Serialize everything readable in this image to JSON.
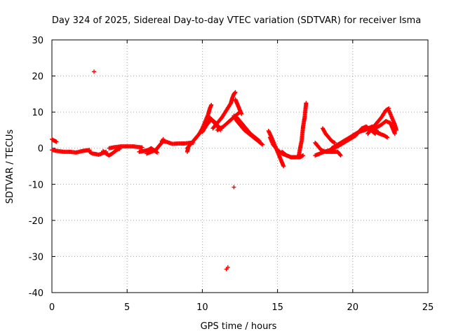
{
  "chart_data": {
    "type": "scatter",
    "title": "Day 324 of 2025, Sidereal Day-to-day VTEC variation (SDTVAR) for receiver Isma",
    "xlabel": "GPS time / hours",
    "ylabel": "SDTVAR / TECUs",
    "xlim": [
      0,
      25
    ],
    "ylim": [
      -40,
      30
    ],
    "xticks": [
      "0",
      "5",
      "10",
      "15",
      "20",
      "25"
    ],
    "yticks": [
      "30",
      "20",
      "10",
      "0",
      "-10",
      "-20",
      "-30",
      "-40"
    ],
    "grid": true,
    "marker": "+",
    "series_color": "#ff0000",
    "tracks": [
      [
        [
          0.0,
          2.5
        ],
        [
          0.1,
          2.2
        ],
        [
          0.2,
          2.0
        ],
        [
          0.3,
          1.8
        ]
      ],
      [
        [
          0.0,
          -0.5
        ],
        [
          0.4,
          -0.8
        ],
        [
          0.8,
          -1.0
        ],
        [
          1.2,
          -1.0
        ],
        [
          1.6,
          -1.2
        ],
        [
          2.0,
          -0.8
        ],
        [
          2.3,
          -0.6
        ],
        [
          2.5,
          -0.5
        ]
      ],
      [
        [
          2.5,
          -1.0
        ],
        [
          2.7,
          -1.5
        ],
        [
          2.9,
          -1.6
        ],
        [
          3.1,
          -1.8
        ],
        [
          3.3,
          -1.5
        ],
        [
          3.6,
          -1.0
        ]
      ],
      [
        [
          3.4,
          -0.8
        ],
        [
          3.6,
          -1.5
        ],
        [
          3.8,
          -2.0
        ],
        [
          4.0,
          -1.5
        ],
        [
          4.3,
          -0.5
        ],
        [
          4.5,
          -0.2
        ]
      ],
      [
        [
          3.8,
          0.0
        ],
        [
          4.2,
          0.3
        ],
        [
          4.6,
          0.5
        ],
        [
          5.0,
          0.5
        ],
        [
          5.4,
          0.5
        ],
        [
          5.8,
          0.3
        ],
        [
          6.0,
          0.2
        ]
      ],
      [
        [
          5.8,
          -1.0
        ],
        [
          6.1,
          -0.8
        ],
        [
          6.4,
          -0.5
        ],
        [
          6.6,
          0.0
        ],
        [
          6.8,
          -0.6
        ],
        [
          7.0,
          -1.2
        ]
      ],
      [
        [
          6.3,
          -1.5
        ],
        [
          6.6,
          -1.0
        ],
        [
          6.9,
          -0.5
        ],
        [
          7.1,
          0.5
        ],
        [
          7.3,
          1.5
        ],
        [
          7.4,
          2.5
        ]
      ],
      [
        [
          7.3,
          2.0
        ],
        [
          7.6,
          1.8
        ],
        [
          7.8,
          1.5
        ],
        [
          8.0,
          1.2
        ],
        [
          8.4,
          1.3
        ],
        [
          8.8,
          1.3
        ],
        [
          9.2,
          1.5
        ],
        [
          9.4,
          1.5
        ]
      ],
      [
        [
          9.0,
          0.0
        ],
        [
          9.2,
          1.0
        ],
        [
          9.4,
          2.0
        ],
        [
          9.6,
          3.0
        ],
        [
          9.8,
          4.0
        ]
      ],
      [
        [
          9.0,
          -1.0
        ],
        [
          9.05,
          0.0
        ]
      ],
      [
        [
          9.8,
          4.0
        ],
        [
          10.0,
          5.5
        ],
        [
          10.2,
          7.5
        ],
        [
          10.4,
          9.5
        ],
        [
          10.5,
          11.0
        ],
        [
          10.6,
          12.0
        ]
      ],
      [
        [
          10.0,
          4.5
        ],
        [
          10.3,
          6.5
        ],
        [
          10.6,
          8.0
        ],
        [
          10.9,
          7.0
        ],
        [
          11.2,
          5.0
        ]
      ],
      [
        [
          10.2,
          7.0
        ],
        [
          10.5,
          8.5
        ],
        [
          10.7,
          7.5
        ],
        [
          11.0,
          6.0
        ],
        [
          11.3,
          5.5
        ]
      ],
      [
        [
          10.7,
          5.5
        ],
        [
          11.0,
          7.0
        ],
        [
          11.3,
          8.5
        ],
        [
          11.6,
          10.5
        ],
        [
          11.9,
          12.5
        ],
        [
          12.0,
          14.0
        ],
        [
          12.1,
          15.0
        ],
        [
          12.2,
          15.5
        ]
      ],
      [
        [
          11.0,
          5.0
        ],
        [
          11.4,
          6.0
        ],
        [
          11.8,
          7.5
        ],
        [
          12.2,
          9.0
        ],
        [
          12.5,
          10.0
        ]
      ],
      [
        [
          12.2,
          13.5
        ],
        [
          12.3,
          12.5
        ],
        [
          12.4,
          11.5
        ],
        [
          12.5,
          10.5
        ],
        [
          12.6,
          9.5
        ]
      ],
      [
        [
          12.1,
          9.0
        ],
        [
          12.3,
          7.5
        ],
        [
          12.5,
          6.5
        ],
        [
          12.8,
          5.0
        ],
        [
          13.1,
          4.0
        ],
        [
          13.4,
          3.0
        ],
        [
          13.7,
          2.0
        ],
        [
          14.0,
          1.0
        ]
      ],
      [
        [
          12.3,
          8.5
        ],
        [
          12.6,
          7.0
        ],
        [
          12.9,
          5.5
        ],
        [
          13.2,
          4.0
        ],
        [
          13.5,
          3.0
        ],
        [
          13.8,
          2.0
        ]
      ],
      [
        [
          14.4,
          4.8
        ],
        [
          14.6,
          3.0
        ],
        [
          14.8,
          1.0
        ],
        [
          15.0,
          -1.0
        ],
        [
          15.2,
          -3.0
        ],
        [
          15.3,
          -4.0
        ],
        [
          15.4,
          -5.0
        ]
      ],
      [
        [
          14.5,
          3.0
        ],
        [
          14.7,
          1.0
        ],
        [
          15.0,
          -0.5
        ],
        [
          15.3,
          -1.5
        ],
        [
          15.6,
          -2.0
        ],
        [
          15.9,
          -2.5
        ],
        [
          16.2,
          -2.5
        ]
      ],
      [
        [
          15.3,
          -1.0
        ],
        [
          15.6,
          -2.0
        ],
        [
          15.9,
          -2.5
        ],
        [
          16.2,
          -2.5
        ],
        [
          16.5,
          -2.5
        ],
        [
          16.7,
          -2.0
        ]
      ],
      [
        [
          16.4,
          -2.5
        ],
        [
          16.5,
          0.0
        ],
        [
          16.6,
          2.0
        ],
        [
          16.65,
          4.0
        ],
        [
          16.7,
          6.0
        ],
        [
          16.8,
          8.5
        ],
        [
          16.85,
          10.5
        ],
        [
          16.9,
          12.5
        ]
      ],
      [
        [
          17.5,
          1.5
        ],
        [
          17.7,
          0.5
        ],
        [
          17.9,
          -0.5
        ],
        [
          18.2,
          -1.0
        ],
        [
          18.5,
          -1.0
        ],
        [
          18.8,
          -1.0
        ],
        [
          19.0,
          -1.0
        ],
        [
          19.2,
          -2.0
        ]
      ],
      [
        [
          17.5,
          -2.0
        ],
        [
          17.8,
          -1.5
        ],
        [
          18.1,
          -1.0
        ],
        [
          18.5,
          -0.5
        ],
        [
          19.0,
          0.5
        ],
        [
          19.4,
          1.5
        ],
        [
          19.8,
          2.5
        ],
        [
          20.2,
          3.5
        ]
      ],
      [
        [
          18.0,
          5.5
        ],
        [
          18.2,
          4.0
        ],
        [
          18.4,
          3.0
        ],
        [
          18.6,
          2.0
        ],
        [
          18.8,
          1.5
        ]
      ],
      [
        [
          18.6,
          0.0
        ],
        [
          19.0,
          1.0
        ],
        [
          19.4,
          2.0
        ],
        [
          19.8,
          3.0
        ],
        [
          20.2,
          4.0
        ],
        [
          20.6,
          5.0
        ],
        [
          21.0,
          5.5
        ],
        [
          21.3,
          6.0
        ]
      ],
      [
        [
          20.0,
          3.5
        ],
        [
          20.4,
          4.5
        ],
        [
          20.8,
          5.0
        ],
        [
          21.1,
          5.5
        ],
        [
          21.4,
          5.0
        ],
        [
          21.7,
          4.5
        ]
      ],
      [
        [
          20.3,
          4.0
        ],
        [
          20.6,
          5.5
        ],
        [
          20.9,
          6.0
        ],
        [
          21.2,
          5.0
        ],
        [
          21.5,
          4.0
        ]
      ],
      [
        [
          21.0,
          4.0
        ],
        [
          21.3,
          5.5
        ],
        [
          21.6,
          7.0
        ],
        [
          21.9,
          8.5
        ],
        [
          22.2,
          10.5
        ],
        [
          22.4,
          11.0
        ]
      ],
      [
        [
          21.5,
          5.5
        ],
        [
          21.9,
          6.5
        ],
        [
          22.2,
          7.5
        ],
        [
          22.5,
          7.0
        ],
        [
          22.8,
          4.0
        ]
      ],
      [
        [
          21.5,
          4.5
        ],
        [
          21.8,
          4.0
        ],
        [
          22.1,
          3.5
        ],
        [
          22.3,
          3.0
        ]
      ],
      [
        [
          22.4,
          10.5
        ],
        [
          22.6,
          8.5
        ],
        [
          22.8,
          6.5
        ],
        [
          22.9,
          5.0
        ]
      ]
    ],
    "outliers": [
      [
        2.8,
        21.2
      ],
      [
        12.1,
        -10.8
      ],
      [
        11.6,
        -33.5
      ],
      [
        11.7,
        -33.0
      ]
    ]
  }
}
